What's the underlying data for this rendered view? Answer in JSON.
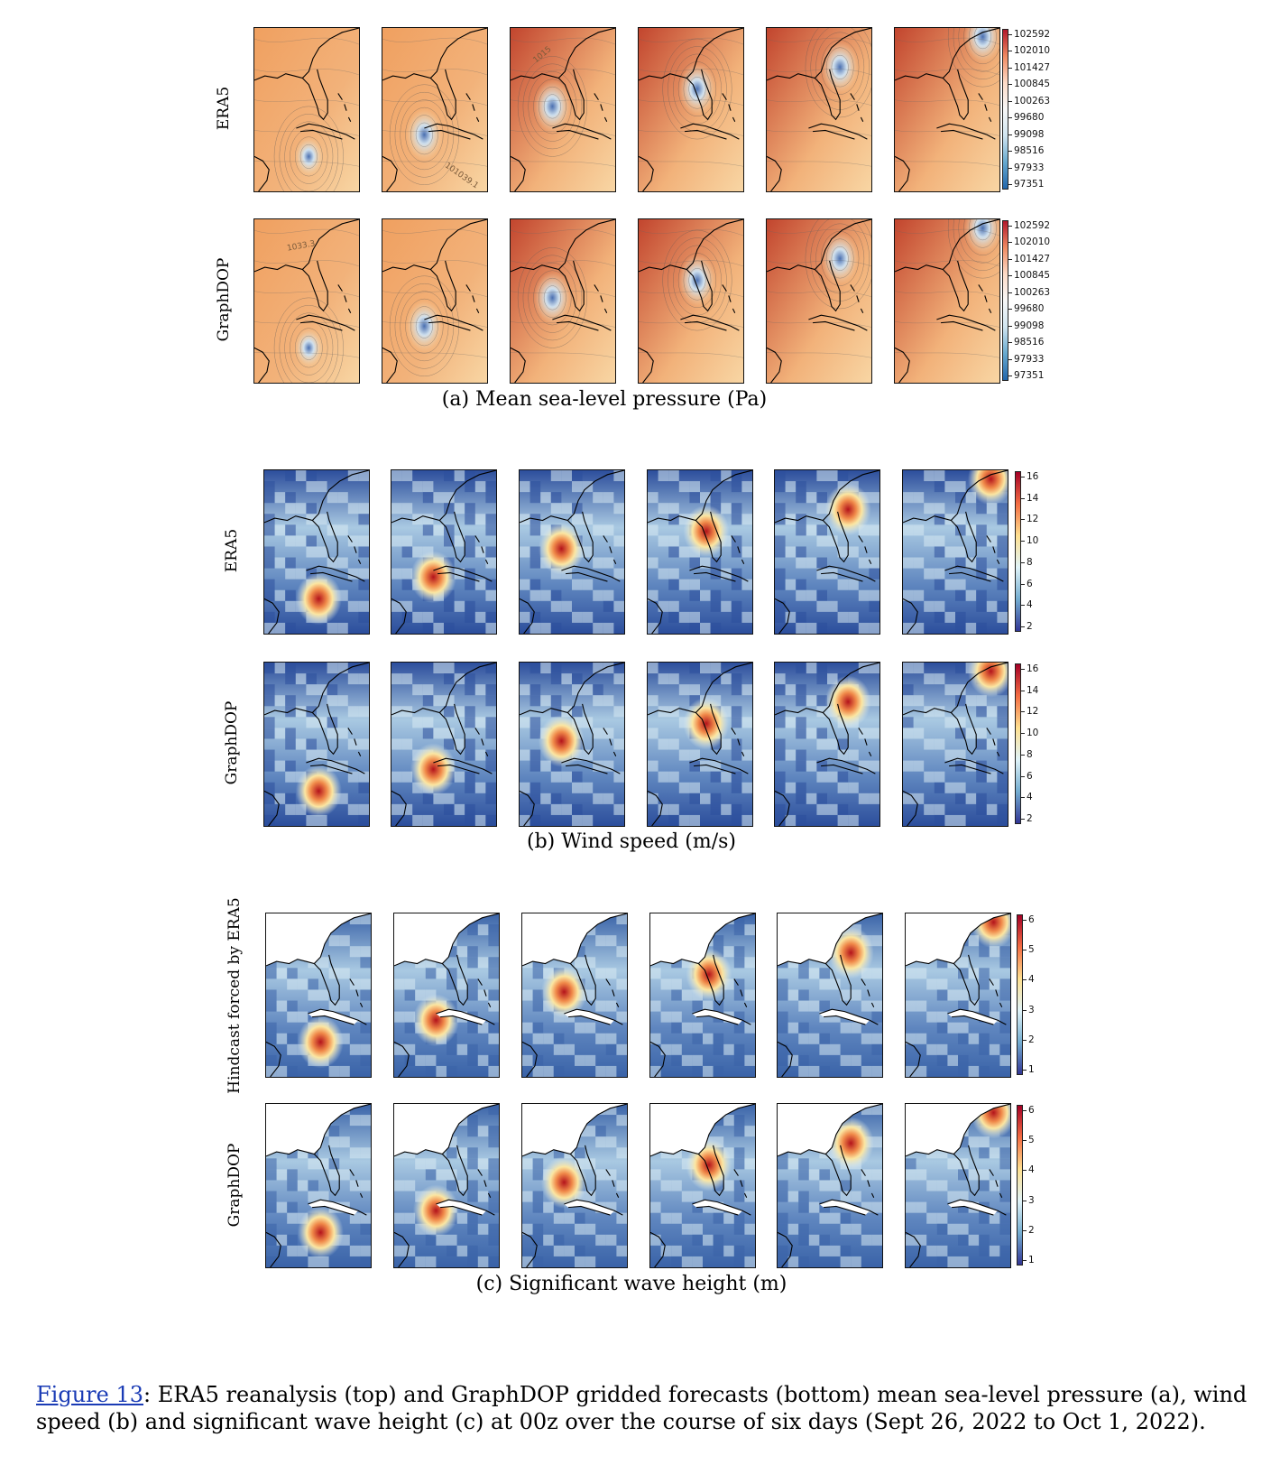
{
  "sections": [
    {
      "id": "mslp",
      "caption": "(a)  Mean sea-level pressure (Pa)",
      "rows": [
        "ERA5",
        "GraphDOP"
      ],
      "colorbar_ticks": [
        "102592",
        "102010",
        "101427",
        "100845",
        "100263",
        "99680",
        "99098",
        "98516",
        "97933",
        "97351"
      ],
      "contour_labels": {
        "era5_day2": "101039.1",
        "era5_day3": "1015",
        "graphdop_day1": "1033.3"
      }
    },
    {
      "id": "wind",
      "caption": "(b)  Wind speed (m/s)",
      "rows": [
        "ERA5",
        "GraphDOP"
      ],
      "colorbar_ticks": [
        "16",
        "14",
        "12",
        "10",
        "8",
        "6",
        "4",
        "2"
      ]
    },
    {
      "id": "wave",
      "caption": "(c)  Significant wave height (m)",
      "rows": [
        "Hindcast forced by ERA5",
        "GraphDOP"
      ],
      "colorbar_ticks": [
        "6",
        "5",
        "4",
        "3",
        "2",
        "1"
      ]
    }
  ],
  "figure_caption": {
    "ref": "Figure 13",
    "text": ": ERA5 reanalysis (top) and GraphDOP gridded forecasts (bottom) mean sea-level pressure (a), wind speed (b) and significant wave height (c) at 00z over the course of six days (Sept 26, 2022 to Oct 1, 2022)."
  },
  "colors": {
    "pressure_high": "#c2452e",
    "pressure_mid": "#f2b27a",
    "pressure_low": "#4a6fb0",
    "wind_high": "#b3131b",
    "wind_low": "#2c4e9c",
    "wave_high": "#b3131b",
    "wave_low": "#3a63a8",
    "land_outline": "#000000"
  }
}
